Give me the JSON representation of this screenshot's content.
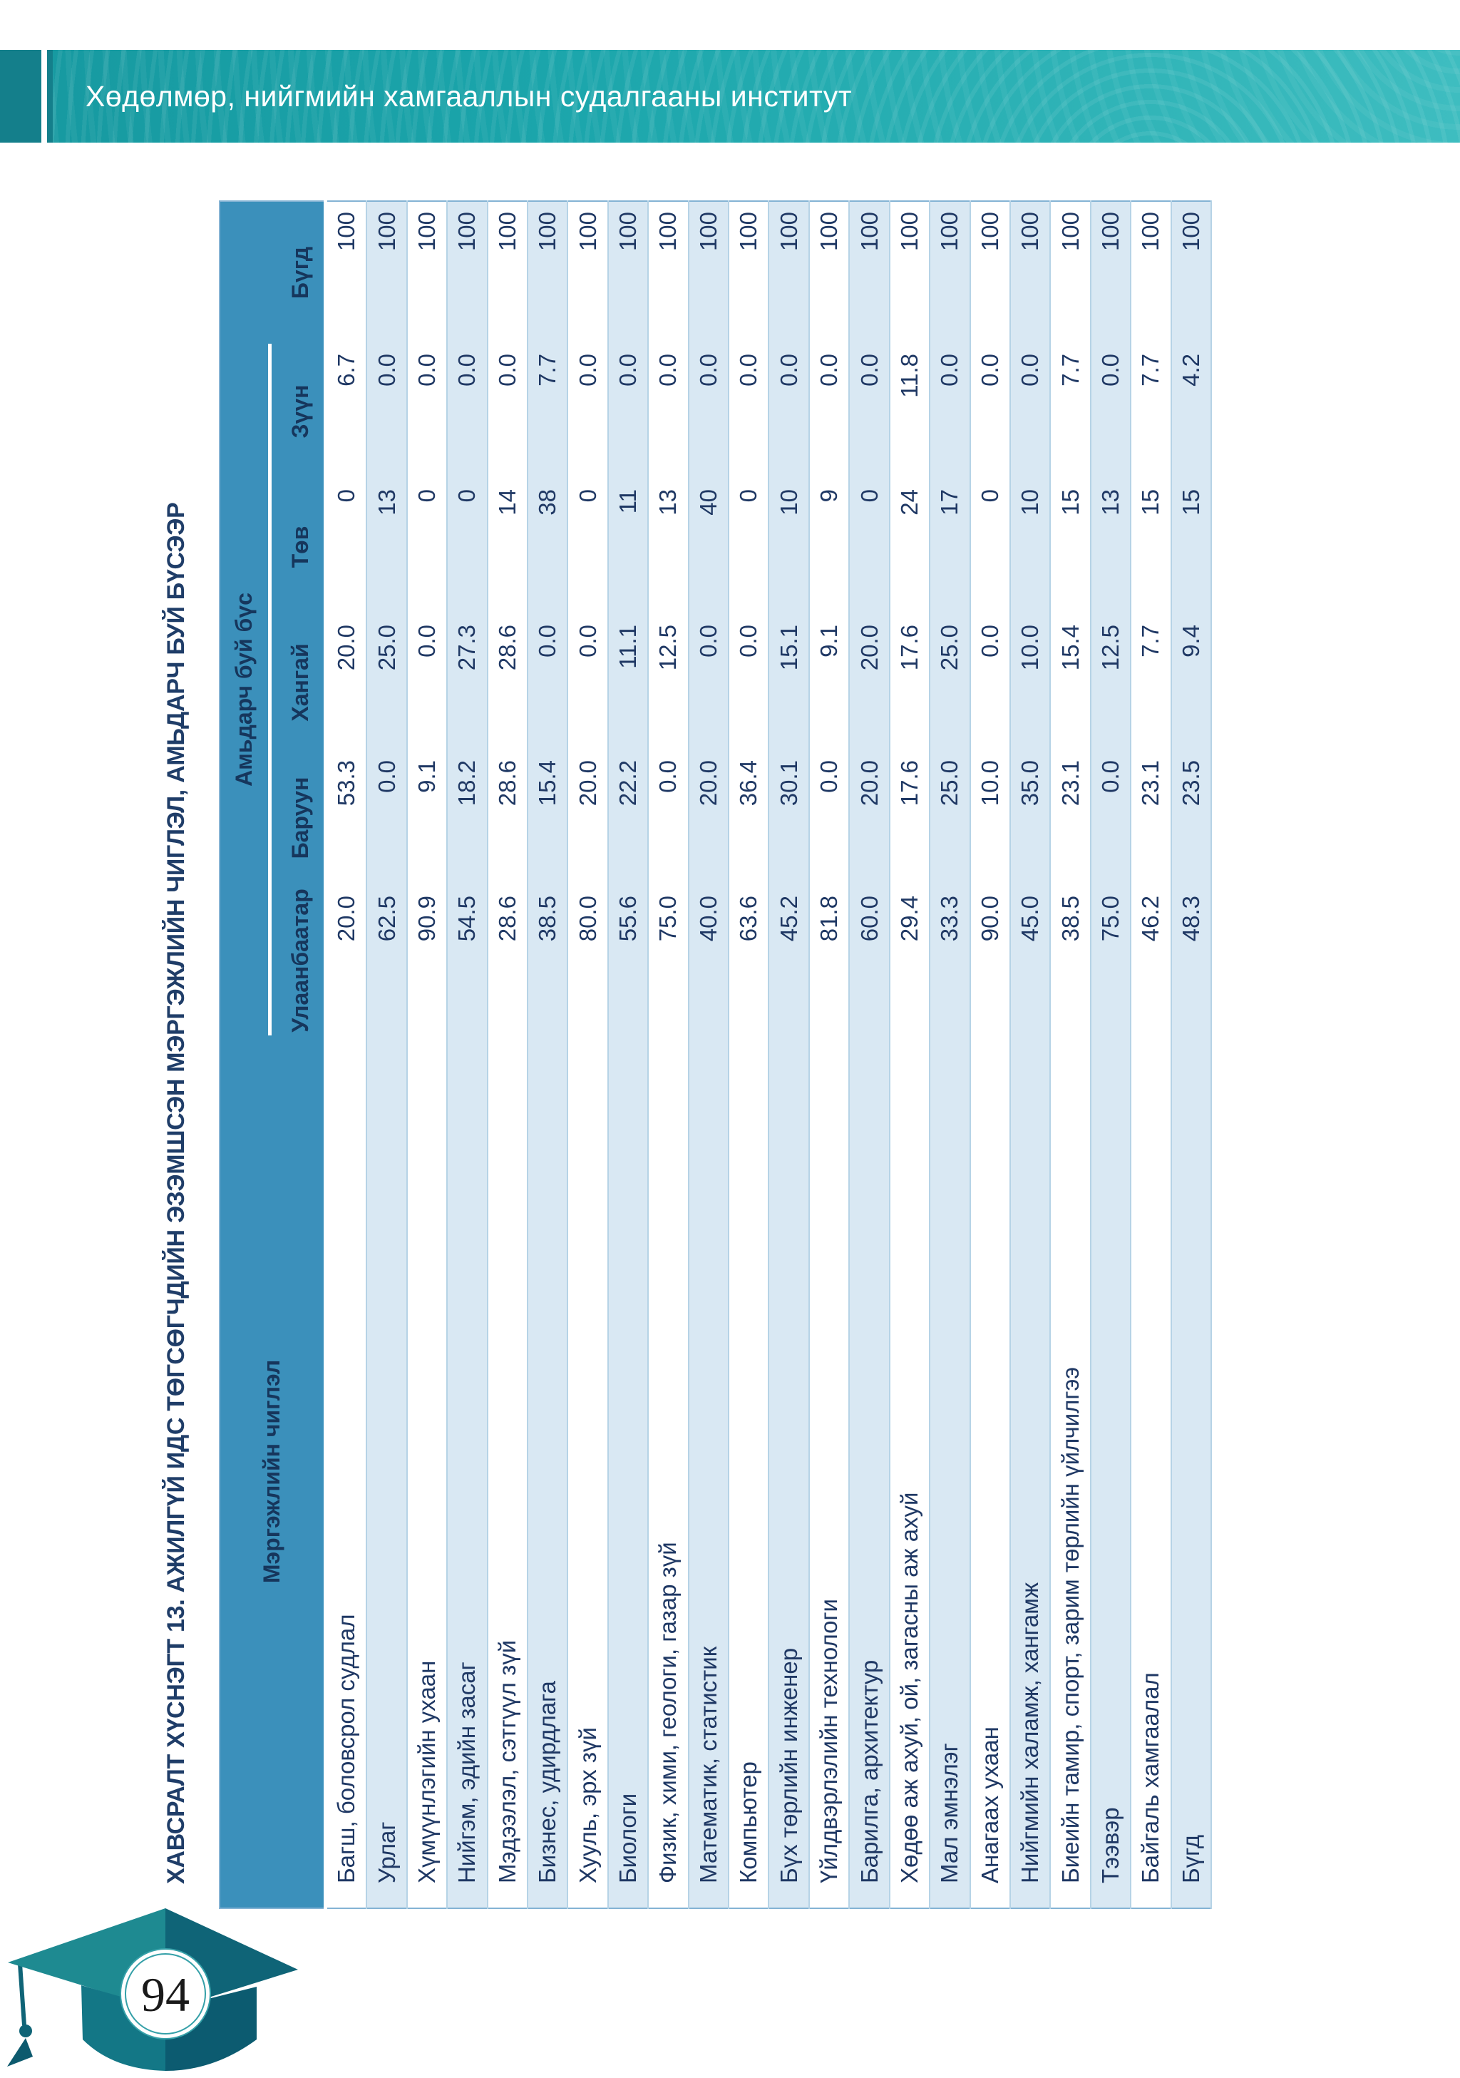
{
  "header": {
    "institute": "Хөдөлмөр, нийгмийн хамгааллын судалгааны институт"
  },
  "table_title": "ХАВСРАЛТ ХҮСНЭГТ 13. АЖИЛГҮЙ ИДС ТӨГСӨГЧДИЙН ЭЗЭМШСЭН МЭРГЭЖЛИЙН ЧИГЛЭЛ, АМЬДАРЧ БУЙ БҮСЭЭР",
  "table": {
    "name_header": "Мэргэжлийн чиглэл",
    "group_header": "Амьдарч буй бүс",
    "region_headers": [
      "Улаанбаатар",
      "Баруун",
      "Хангай",
      "Төв",
      "Зүүн"
    ],
    "total_header": "Бүгд",
    "rows": [
      {
        "name": "Багш, боловсрол судлал",
        "values": [
          "20.0",
          "53.3",
          "20.0",
          "0",
          "6.7",
          "100"
        ]
      },
      {
        "name": "Урлаг",
        "values": [
          "62.5",
          "0.0",
          "25.0",
          "13",
          "0.0",
          "100"
        ]
      },
      {
        "name": "Хүмүүнлэгийн ухаан",
        "values": [
          "90.9",
          "9.1",
          "0.0",
          "0",
          "0.0",
          "100"
        ]
      },
      {
        "name": "Нийгэм, эдийн засаг",
        "values": [
          "54.5",
          "18.2",
          "27.3",
          "0",
          "0.0",
          "100"
        ]
      },
      {
        "name": "Мэдээлэл, сэтгүүл зүй",
        "values": [
          "28.6",
          "28.6",
          "28.6",
          "14",
          "0.0",
          "100"
        ]
      },
      {
        "name": "Бизнес, удирдлага",
        "values": [
          "38.5",
          "15.4",
          "0.0",
          "38",
          "7.7",
          "100"
        ]
      },
      {
        "name": "Хууль, эрх зүй",
        "values": [
          "80.0",
          "20.0",
          "0.0",
          "0",
          "0.0",
          "100"
        ]
      },
      {
        "name": "Биологи",
        "values": [
          "55.6",
          "22.2",
          "11.1",
          "11",
          "0.0",
          "100"
        ]
      },
      {
        "name": "Физик, хими, геологи, газар зүй",
        "values": [
          "75.0",
          "0.0",
          "12.5",
          "13",
          "0.0",
          "100"
        ]
      },
      {
        "name": "Математик, статистик",
        "values": [
          "40.0",
          "20.0",
          "0.0",
          "40",
          "0.0",
          "100"
        ]
      },
      {
        "name": "Компьютер",
        "values": [
          "63.6",
          "36.4",
          "0.0",
          "0",
          "0.0",
          "100"
        ]
      },
      {
        "name": "Бүх төрлийн инженер",
        "values": [
          "45.2",
          "30.1",
          "15.1",
          "10",
          "0.0",
          "100"
        ]
      },
      {
        "name": "Үйлдвэрлэлийн технологи",
        "values": [
          "81.8",
          "0.0",
          "9.1",
          "9",
          "0.0",
          "100"
        ]
      },
      {
        "name": "Барилга, архитектур",
        "values": [
          "60.0",
          "20.0",
          "20.0",
          "0",
          "0.0",
          "100"
        ]
      },
      {
        "name": "Хөдөө аж ахуй, ой, загасны аж ахуй",
        "values": [
          "29.4",
          "17.6",
          "17.6",
          "24",
          "11.8",
          "100"
        ]
      },
      {
        "name": "Мал эмнэлэг",
        "values": [
          "33.3",
          "25.0",
          "25.0",
          "17",
          "0.0",
          "100"
        ]
      },
      {
        "name": "Анагаах ухаан",
        "values": [
          "90.0",
          "10.0",
          "0.0",
          "0",
          "0.0",
          "100"
        ]
      },
      {
        "name": "Нийгмийн халамж, хангамж",
        "values": [
          "45.0",
          "35.0",
          "10.0",
          "10",
          "0.0",
          "100"
        ]
      },
      {
        "name": "Биеийн тамир, спорт, зарим төрлийн үйлчилгээ",
        "values": [
          "38.5",
          "23.1",
          "15.4",
          "15",
          "7.7",
          "100"
        ]
      },
      {
        "name": "Тээвэр",
        "values": [
          "75.0",
          "0.0",
          "12.5",
          "13",
          "0.0",
          "100"
        ]
      },
      {
        "name": "Байгаль хамгаалал",
        "values": [
          "46.2",
          "23.1",
          "7.7",
          "15",
          "7.7",
          "100"
        ]
      },
      {
        "name": "Бүгд",
        "values": [
          "48.3",
          "23.5",
          "9.4",
          "15",
          "4.2",
          "100"
        ]
      }
    ]
  },
  "footer": {
    "page_number": "94"
  },
  "colors": {
    "banner_teal": "#1ba5ab",
    "banner_teal_dark": "#147f8b",
    "header_blue": "#3b90bb",
    "row_alt_blue": "#d9e8f3",
    "text_navy": "#1f3864",
    "header_text_navy": "#16365c",
    "grid_line": "#b6d3e6",
    "cap_left_teal": "#1e8a91",
    "cap_right_teal": "#0f6477"
  }
}
